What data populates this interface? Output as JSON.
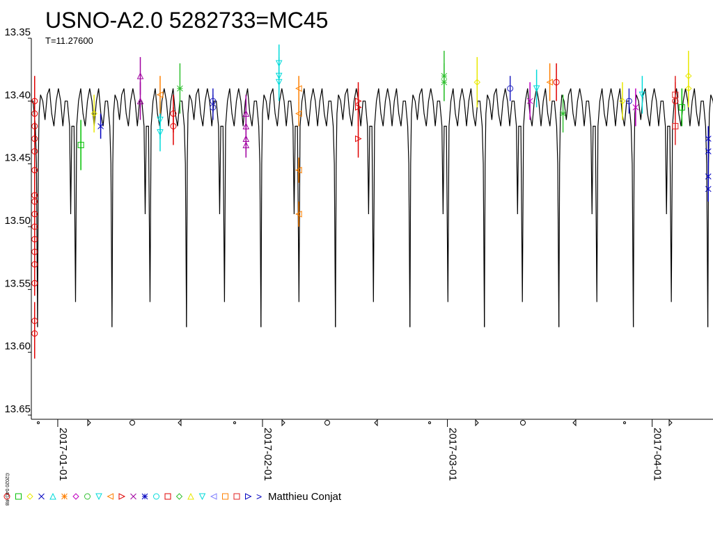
{
  "chart_data": {
    "type": "lightcurve",
    "title": "USNO-A2.0 5282733=MC45",
    "subtitle": "T=11.27600",
    "credit": "©2020 04G-R8",
    "legend_label": "Matthieu Conjat",
    "xlim": [
      "2016-12-28",
      "2017-04-10"
    ],
    "xticks": [
      "2017-01-01",
      "2017-02-01",
      "2017-03-01",
      "2017-04-01"
    ],
    "ylim": [
      13.35,
      13.65
    ],
    "y_inverted": true,
    "yticks": [
      13.35,
      {
        "value": 13.4,
        "label": "13.40"
      },
      13.45,
      {
        "value": 13.5,
        "label": "13.50"
      },
      13.55,
      {
        "value": 13.6,
        "label": "13.60"
      },
      13.65
    ],
    "model": {
      "color": "#000000",
      "period": 11.276,
      "epoch": "2017-01-09T05:15",
      "phase": [
        0,
        0.01,
        0.02,
        0.04,
        0.07,
        0.1,
        0.13,
        0.16,
        0.19,
        0.22,
        0.25,
        0.28,
        0.31,
        0.34,
        0.37,
        0.4,
        0.43,
        0.445,
        0.46,
        0.49,
        0.51,
        0.525,
        0.55,
        0.58,
        0.61,
        0.64,
        0.67,
        0.7,
        0.73,
        0.76,
        0.79,
        0.82,
        0.85,
        0.88,
        0.91,
        0.94,
        0.97,
        0.985,
        1
      ],
      "values": [
        13.58,
        13.45,
        13.41,
        13.395,
        13.4,
        13.415,
        13.395,
        13.39,
        13.41,
        13.42,
        13.4,
        13.39,
        13.4,
        13.42,
        13.4,
        13.4,
        13.42,
        13.49,
        13.42,
        13.42,
        13.56,
        13.42,
        13.4,
        13.39,
        13.41,
        13.42,
        13.4,
        13.39,
        13.4,
        13.42,
        13.4,
        13.39,
        13.41,
        13.42,
        13.4,
        13.4,
        13.42,
        13.45,
        13.58
      ]
    },
    "series": [
      {
        "color": "#e00000",
        "marker": "circle",
        "x": [
          "2016-12-28",
          "2016-12-28",
          "2016-12-28",
          "2016-12-28",
          "2016-12-28",
          "2016-12-28",
          "2016-12-28",
          "2016-12-28",
          "2016-12-28",
          "2016-12-28",
          "2016-12-28",
          "2016-12-28",
          "2016-12-28",
          "2016-12-28",
          "2016-12-28",
          "2016-12-28",
          "2017-01-18",
          "2017-01-18",
          "2017-03-17",
          "2017-04-04"
        ],
        "values": [
          13.4,
          13.41,
          13.42,
          13.43,
          13.44,
          13.455,
          13.475,
          13.48,
          13.49,
          13.5,
          13.51,
          13.52,
          13.53,
          13.545,
          13.575,
          13.585,
          13.41,
          13.42,
          13.385,
          13.4
        ],
        "errors": [
          0.02,
          0.02,
          0.02,
          0.015,
          0.015,
          0.015,
          0.01,
          0.01,
          0.01,
          0.01,
          0.01,
          0.01,
          0.01,
          0.01,
          0.015,
          0.02,
          0.015,
          0.015,
          0.015,
          0.015
        ]
      },
      {
        "color": "#00c000",
        "marker": "square",
        "x": [
          "2017-01-04",
          "2017-04-05"
        ],
        "values": [
          13.435,
          13.405
        ],
        "errors": [
          0.02,
          0.015
        ]
      },
      {
        "color": "#e8e800",
        "marker": "diamond",
        "x": [
          "2017-01-06",
          "2017-03-05",
          "2017-03-27",
          "2017-04-06",
          "2017-04-06"
        ],
        "values": [
          13.41,
          13.385,
          13.4,
          13.38,
          13.39
        ],
        "errors": [
          0.015,
          0.02,
          0.015,
          0.02,
          0.015
        ]
      },
      {
        "color": "#0000c0",
        "marker": "x",
        "x": [
          "2017-01-07",
          "2017-04-09",
          "2017-04-09",
          "2017-04-09",
          "2017-04-09"
        ],
        "values": [
          13.42,
          13.43,
          13.44,
          13.46,
          13.47
        ],
        "errors": [
          0.01,
          0.01,
          0.01,
          0.01,
          0.01
        ]
      },
      {
        "color": "#a000a0",
        "marker": "triangle",
        "x": [
          "2017-01-13",
          "2017-01-13",
          "2017-01-29",
          "2017-01-29",
          "2017-01-29",
          "2017-01-29"
        ],
        "values": [
          13.38,
          13.4,
          13.41,
          13.42,
          13.43,
          13.435
        ],
        "errors": [
          0.015,
          0.015,
          0.015,
          0.015,
          0.01,
          0.01
        ]
      },
      {
        "color": "#00dada",
        "marker": "triangle-down",
        "x": [
          "2017-01-16",
          "2017-01-16",
          "2017-02-03",
          "2017-02-03",
          "2017-02-03",
          "2017-03-14",
          "2017-03-30"
        ],
        "values": [
          13.415,
          13.425,
          13.37,
          13.38,
          13.385,
          13.39,
          13.395
        ],
        "errors": [
          0.015,
          0.015,
          0.015,
          0.015,
          0.015,
          0.015,
          0.015
        ]
      },
      {
        "color": "#ff8000",
        "marker": "triangle-left",
        "x": [
          "2017-01-16",
          "2017-02-06",
          "2017-02-06",
          "2017-02-06",
          "2017-02-06",
          "2017-03-16"
        ],
        "values": [
          13.395,
          13.39,
          13.41,
          13.455,
          13.49,
          13.385
        ],
        "errors": [
          0.015,
          0.01,
          0.01,
          0.01,
          0.01,
          0.015
        ]
      },
      {
        "color": "#30c030",
        "marker": "star",
        "x": [
          "2017-01-19",
          "2017-02-28",
          "2017-02-28",
          "2017-03-18"
        ],
        "values": [
          13.39,
          13.38,
          13.385,
          13.41
        ],
        "errors": [
          0.02,
          0.02,
          0.015,
          0.015
        ]
      },
      {
        "color": "#2020c0",
        "marker": "circle",
        "x": [
          "2017-01-24",
          "2017-01-24",
          "2017-03-10",
          "2017-03-28"
        ],
        "values": [
          13.4,
          13.405,
          13.39,
          13.4
        ],
        "errors": [
          0.01,
          0.01,
          0.01,
          0.01
        ]
      },
      {
        "color": "#e00000",
        "marker": "triangle-right",
        "x": [
          "2017-02-15",
          "2017-02-15",
          "2017-02-15"
        ],
        "values": [
          13.4,
          13.405,
          13.43
        ],
        "errors": [
          0.015,
          0.015,
          0.015
        ]
      },
      {
        "color": "#c000c0",
        "marker": "x",
        "x": [
          "2017-03-13",
          "2017-03-29"
        ],
        "values": [
          13.4,
          13.405
        ],
        "errors": [
          0.015,
          0.015
        ]
      },
      {
        "color": "#e02020",
        "marker": "square",
        "x": [
          "2017-04-04",
          "2017-04-04"
        ],
        "values": [
          13.395,
          13.42
        ],
        "errors": [
          0.015,
          0.015
        ]
      }
    ]
  }
}
